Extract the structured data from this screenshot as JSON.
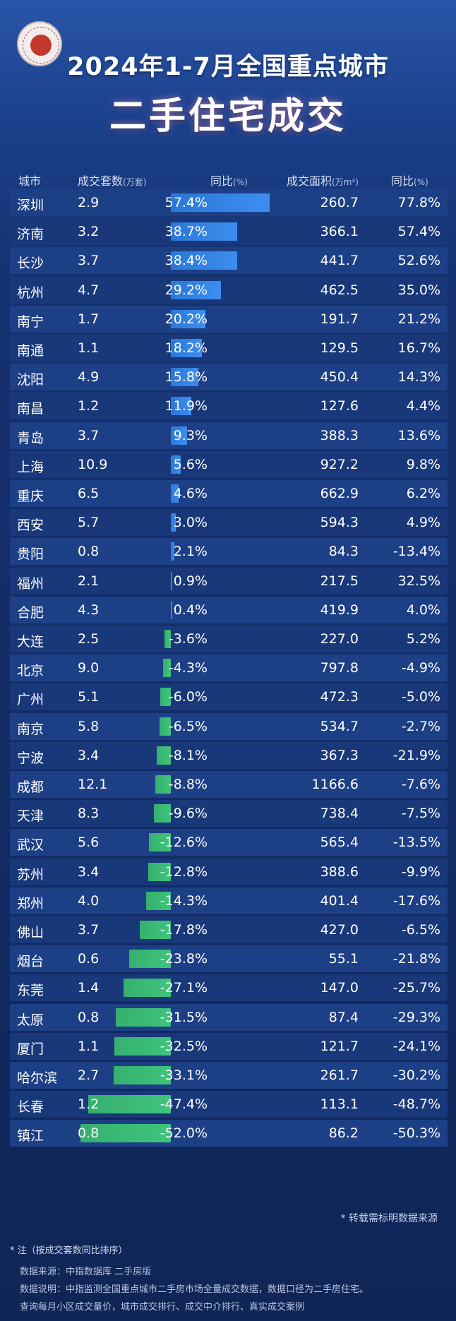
{
  "header": {
    "title_line1": "2024年1-7月全国重点城市",
    "title_line2": "二手住宅成交"
  },
  "columns": {
    "city": "城市",
    "sets": "成交套数",
    "sets_unit": "(万套)",
    "yoy1": "同比",
    "yoy1_unit": "(%)",
    "area": "成交面积",
    "area_unit": "(万m²)",
    "yoy2": "同比",
    "yoy2_unit": "(%)"
  },
  "chart_data": {
    "type": "table",
    "columns": [
      "城市",
      "成交套数(万套)",
      "同比(%)",
      "成交面积(万m²)",
      "同比(%)"
    ],
    "rows": [
      {
        "city": "深圳",
        "sets": "2.9",
        "sets_yoy": "57.4%",
        "sets_yoy_value": 57.4,
        "area": "260.7",
        "area_yoy": "77.8%"
      },
      {
        "city": "济南",
        "sets": "3.2",
        "sets_yoy": "38.7%",
        "sets_yoy_value": 38.7,
        "area": "366.1",
        "area_yoy": "57.4%"
      },
      {
        "city": "长沙",
        "sets": "3.7",
        "sets_yoy": "38.4%",
        "sets_yoy_value": 38.4,
        "area": "441.7",
        "area_yoy": "52.6%"
      },
      {
        "city": "杭州",
        "sets": "4.7",
        "sets_yoy": "29.2%",
        "sets_yoy_value": 29.2,
        "area": "462.5",
        "area_yoy": "35.0%"
      },
      {
        "city": "南宁",
        "sets": "1.7",
        "sets_yoy": "20.2%",
        "sets_yoy_value": 20.2,
        "area": "191.7",
        "area_yoy": "21.2%"
      },
      {
        "city": "南通",
        "sets": "1.1",
        "sets_yoy": "18.2%",
        "sets_yoy_value": 18.2,
        "area": "129.5",
        "area_yoy": "16.7%"
      },
      {
        "city": "沈阳",
        "sets": "4.9",
        "sets_yoy": "15.8%",
        "sets_yoy_value": 15.8,
        "area": "450.4",
        "area_yoy": "14.3%"
      },
      {
        "city": "南昌",
        "sets": "1.2",
        "sets_yoy": "11.9%",
        "sets_yoy_value": 11.9,
        "area": "127.6",
        "area_yoy": "4.4%"
      },
      {
        "city": "青岛",
        "sets": "3.7",
        "sets_yoy": "9.3%",
        "sets_yoy_value": 9.3,
        "area": "388.3",
        "area_yoy": "13.6%"
      },
      {
        "city": "上海",
        "sets": "10.9",
        "sets_yoy": "5.6%",
        "sets_yoy_value": 5.6,
        "area": "927.2",
        "area_yoy": "9.8%"
      },
      {
        "city": "重庆",
        "sets": "6.5",
        "sets_yoy": "4.6%",
        "sets_yoy_value": 4.6,
        "area": "662.9",
        "area_yoy": "6.2%"
      },
      {
        "city": "西安",
        "sets": "5.7",
        "sets_yoy": "3.0%",
        "sets_yoy_value": 3.0,
        "area": "594.3",
        "area_yoy": "4.9%"
      },
      {
        "city": "贵阳",
        "sets": "0.8",
        "sets_yoy": "2.1%",
        "sets_yoy_value": 2.1,
        "area": "84.3",
        "area_yoy": "-13.4%"
      },
      {
        "city": "福州",
        "sets": "2.1",
        "sets_yoy": "0.9%",
        "sets_yoy_value": 0.9,
        "area": "217.5",
        "area_yoy": "32.5%"
      },
      {
        "city": "合肥",
        "sets": "4.3",
        "sets_yoy": "0.4%",
        "sets_yoy_value": 0.4,
        "area": "419.9",
        "area_yoy": "4.0%"
      },
      {
        "city": "大连",
        "sets": "2.5",
        "sets_yoy": "-3.6%",
        "sets_yoy_value": -3.6,
        "area": "227.0",
        "area_yoy": "5.2%"
      },
      {
        "city": "北京",
        "sets": "9.0",
        "sets_yoy": "-4.3%",
        "sets_yoy_value": -4.3,
        "area": "797.8",
        "area_yoy": "-4.9%"
      },
      {
        "city": "广州",
        "sets": "5.1",
        "sets_yoy": "-6.0%",
        "sets_yoy_value": -6.0,
        "area": "472.3",
        "area_yoy": "-5.0%"
      },
      {
        "city": "南京",
        "sets": "5.8",
        "sets_yoy": "-6.5%",
        "sets_yoy_value": -6.5,
        "area": "534.7",
        "area_yoy": "-2.7%"
      },
      {
        "city": "宁波",
        "sets": "3.4",
        "sets_yoy": "-8.1%",
        "sets_yoy_value": -8.1,
        "area": "367.3",
        "area_yoy": "-21.9%"
      },
      {
        "city": "成都",
        "sets": "12.1",
        "sets_yoy": "-8.8%",
        "sets_yoy_value": -8.8,
        "area": "1166.6",
        "area_yoy": "-7.6%"
      },
      {
        "city": "天津",
        "sets": "8.3",
        "sets_yoy": "-9.6%",
        "sets_yoy_value": -9.6,
        "area": "738.4",
        "area_yoy": "-7.5%"
      },
      {
        "city": "武汉",
        "sets": "5.6",
        "sets_yoy": "-12.6%",
        "sets_yoy_value": -12.6,
        "area": "565.4",
        "area_yoy": "-13.5%"
      },
      {
        "city": "苏州",
        "sets": "3.4",
        "sets_yoy": "-12.8%",
        "sets_yoy_value": -12.8,
        "area": "388.6",
        "area_yoy": "-9.9%"
      },
      {
        "city": "郑州",
        "sets": "4.0",
        "sets_yoy": "-14.3%",
        "sets_yoy_value": -14.3,
        "area": "401.4",
        "area_yoy": "-17.6%"
      },
      {
        "city": "佛山",
        "sets": "3.7",
        "sets_yoy": "-17.8%",
        "sets_yoy_value": -17.8,
        "area": "427.0",
        "area_yoy": "-6.5%"
      },
      {
        "city": "烟台",
        "sets": "0.6",
        "sets_yoy": "-23.8%",
        "sets_yoy_value": -23.8,
        "area": "55.1",
        "area_yoy": "-21.8%"
      },
      {
        "city": "东莞",
        "sets": "1.4",
        "sets_yoy": "-27.1%",
        "sets_yoy_value": -27.1,
        "area": "147.0",
        "area_yoy": "-25.7%"
      },
      {
        "city": "太原",
        "sets": "0.8",
        "sets_yoy": "-31.5%",
        "sets_yoy_value": -31.5,
        "area": "87.4",
        "area_yoy": "-29.3%"
      },
      {
        "city": "厦门",
        "sets": "1.1",
        "sets_yoy": "-32.5%",
        "sets_yoy_value": -32.5,
        "area": "121.7",
        "area_yoy": "-24.1%"
      },
      {
        "city": "哈尔滨",
        "sets": "2.7",
        "sets_yoy": "-33.1%",
        "sets_yoy_value": -33.1,
        "area": "261.7",
        "area_yoy": "-30.2%"
      },
      {
        "city": "长春",
        "sets": "1.2",
        "sets_yoy": "-47.4%",
        "sets_yoy_value": -47.4,
        "area": "113.1",
        "area_yoy": "-48.7%"
      },
      {
        "city": "镇江",
        "sets": "0.8",
        "sets_yoy": "-52.0%",
        "sets_yoy_value": -52.0,
        "area": "86.2",
        "area_yoy": "-50.3%"
      }
    ],
    "bar_colors": {
      "positive": "#3d8ef0",
      "negative": "#3fc47c"
    }
  },
  "footer": {
    "reprint_note": "* 转载需标明数据来源",
    "sort_note": "* 注（按成交套数同比排序）",
    "source_line": "数据来源：中指数据库 二手房版",
    "desc_line": "数据说明：中指监测全国重点城市二手房市场全量成交数据，数据口径为二手房住宅。",
    "query_line": "查询每月小区成交量价，城市成交排行、成交中介排行、真实成交案例"
  }
}
